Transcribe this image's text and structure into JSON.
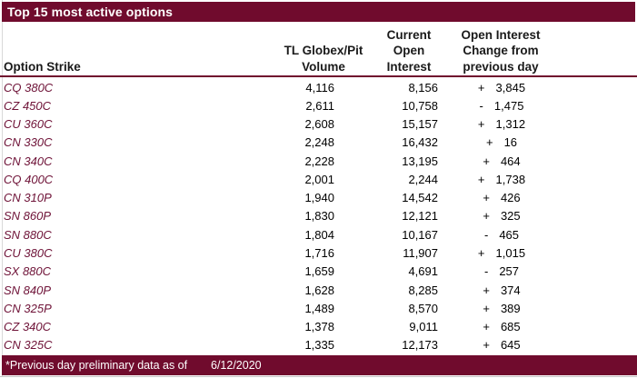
{
  "colors": {
    "accent": "#700B2D",
    "strike_text": "#6E1237",
    "row_text": "#000000",
    "gridline": "#D9D9D9"
  },
  "title": "Top 15 most active options",
  "table": {
    "headers": {
      "strike": "Option Strike",
      "volume_lines": [
        "TL Globex/Pit",
        "Volume"
      ],
      "open_interest_lines": [
        "Current",
        "Open",
        "Interest"
      ],
      "change_lines": [
        "Open Interest",
        "Change from",
        "previous day"
      ]
    },
    "rows": [
      {
        "strike": "CQ 380C",
        "volume": "4,116",
        "open_interest": "8,156",
        "change_sign": "+",
        "change_value": "3,845"
      },
      {
        "strike": "CZ 450C",
        "volume": "2,611",
        "open_interest": "10,758",
        "change_sign": "-",
        "change_value": "1,475"
      },
      {
        "strike": "CU 360C",
        "volume": "2,608",
        "open_interest": "15,157",
        "change_sign": "+",
        "change_value": "1,312"
      },
      {
        "strike": "CN 330C",
        "volume": "2,248",
        "open_interest": "16,432",
        "change_sign": "+",
        "change_value": "16"
      },
      {
        "strike": "CN 340C",
        "volume": "2,228",
        "open_interest": "13,195",
        "change_sign": "+",
        "change_value": "464"
      },
      {
        "strike": "CQ 400C",
        "volume": "2,001",
        "open_interest": "2,244",
        "change_sign": "+",
        "change_value": "1,738"
      },
      {
        "strike": "CN 310P",
        "volume": "1,940",
        "open_interest": "14,542",
        "change_sign": "+",
        "change_value": "426"
      },
      {
        "strike": "SN 860P",
        "volume": "1,830",
        "open_interest": "12,121",
        "change_sign": "+",
        "change_value": "325"
      },
      {
        "strike": "SN 880C",
        "volume": "1,804",
        "open_interest": "10,167",
        "change_sign": "-",
        "change_value": "465"
      },
      {
        "strike": "CU 380C",
        "volume": "1,716",
        "open_interest": "11,907",
        "change_sign": "+",
        "change_value": "1,015"
      },
      {
        "strike": "SX 880C",
        "volume": "1,659",
        "open_interest": "4,691",
        "change_sign": "-",
        "change_value": "257"
      },
      {
        "strike": "SN 840P",
        "volume": "1,628",
        "open_interest": "8,285",
        "change_sign": "+",
        "change_value": "374"
      },
      {
        "strike": "CN 325P",
        "volume": "1,489",
        "open_interest": "8,570",
        "change_sign": "+",
        "change_value": "389"
      },
      {
        "strike": "CZ 340C",
        "volume": "1,378",
        "open_interest": "9,011",
        "change_sign": "+",
        "change_value": "685"
      },
      {
        "strike": "CN 325C",
        "volume": "1,335",
        "open_interest": "12,173",
        "change_sign": "+",
        "change_value": "645"
      }
    ]
  },
  "footer": {
    "note": "*Previous day preliminary data as of",
    "date": "6/12/2020"
  }
}
